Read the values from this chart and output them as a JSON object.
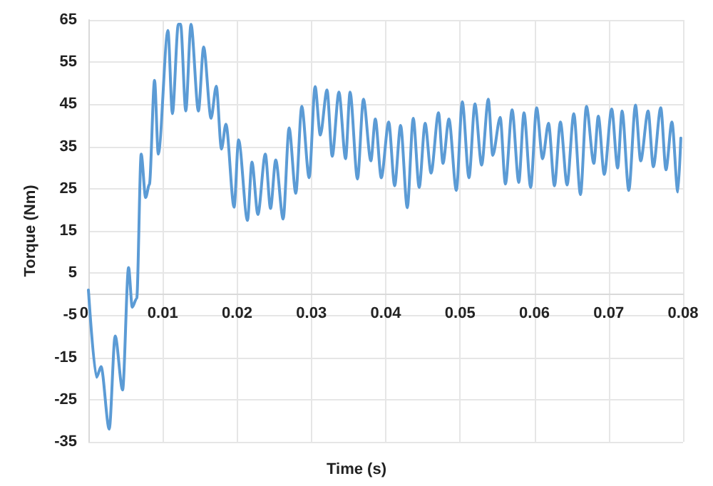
{
  "chart_data": {
    "type": "line",
    "xlabel": "Time (s)",
    "ylabel": "Torque (Nm)",
    "xlim": [
      0,
      0.08
    ],
    "xticks": [
      0,
      0.01,
      0.02,
      0.03,
      0.04,
      0.05,
      0.06,
      0.07,
      0.08
    ],
    "ylim": [
      -35,
      65
    ],
    "yticks": [
      -35,
      -25,
      -15,
      -5,
      5,
      15,
      25,
      35,
      45,
      55,
      65
    ],
    "grid": true,
    "marker": "none",
    "line_style": "solid",
    "series": [
      {
        "color": "#5b9bd5",
        "x": [
          0,
          0.0011,
          0.0017,
          0.0028,
          0.0036,
          0.0046,
          0.0054,
          0.0059,
          0.0065,
          0.0071,
          0.0077,
          0.0082,
          0.0089,
          0.0094,
          0.0107,
          0.0113,
          0.0121,
          0.0124,
          0.0131,
          0.0138,
          0.0148,
          0.0155,
          0.0165,
          0.0172,
          0.0179,
          0.0185,
          0.0196,
          0.0202,
          0.0214,
          0.022,
          0.0228,
          0.0238,
          0.0245,
          0.0252,
          0.0262,
          0.027,
          0.0279,
          0.0287,
          0.0297,
          0.0305,
          0.0312,
          0.0321,
          0.0328,
          0.0337,
          0.0346,
          0.0352,
          0.0362,
          0.037,
          0.038,
          0.0386,
          0.0394,
          0.0404,
          0.0412,
          0.042,
          0.0429,
          0.0437,
          0.0445,
          0.0453,
          0.0461,
          0.0471,
          0.0477,
          0.0485,
          0.0495,
          0.0503,
          0.0512,
          0.052,
          0.0529,
          0.0538,
          0.0544,
          0.0554,
          0.0561,
          0.057,
          0.0579,
          0.0586,
          0.0595,
          0.0603,
          0.0611,
          0.0619,
          0.0627,
          0.0635,
          0.0644,
          0.0653,
          0.0662,
          0.067,
          0.068,
          0.0686,
          0.0694,
          0.0704,
          0.0712,
          0.0718,
          0.0727,
          0.0736,
          0.0743,
          0.0753,
          0.076,
          0.077,
          0.0777,
          0.0785,
          0.0793,
          0.0797
        ],
        "values": [
          1,
          -19.7,
          -17.2,
          -32,
          -9.9,
          -22.7,
          6.3,
          -3.1,
          -1,
          33.2,
          22.9,
          26,
          50.7,
          33.2,
          62.5,
          42.8,
          64,
          64,
          43.4,
          64,
          43.4,
          58.6,
          41.7,
          49.3,
          34.4,
          40.3,
          20.6,
          36.6,
          17.5,
          31.3,
          18.9,
          33.2,
          20.3,
          31.8,
          17.8,
          39.4,
          23.9,
          44.5,
          27.6,
          49.2,
          37.7,
          48.4,
          32.7,
          47.9,
          32.1,
          47.9,
          27.3,
          46.2,
          31.6,
          41.5,
          27.6,
          40.8,
          25.7,
          40,
          20.5,
          41.7,
          25.3,
          40.5,
          28.7,
          43,
          31,
          41.5,
          24.6,
          45.6,
          27.6,
          45.1,
          30.6,
          46.2,
          32.9,
          41.9,
          26.1,
          43.7,
          26.5,
          43,
          25.3,
          44.2,
          32.1,
          40.5,
          25.7,
          40.8,
          25.9,
          42.8,
          23.6,
          44.5,
          31,
          42.2,
          28.4,
          43.9,
          29.9,
          43.4,
          24.6,
          44.8,
          31.6,
          43.4,
          30.2,
          44.2,
          29.5,
          40.8,
          24.2,
          37
        ]
      }
    ]
  }
}
